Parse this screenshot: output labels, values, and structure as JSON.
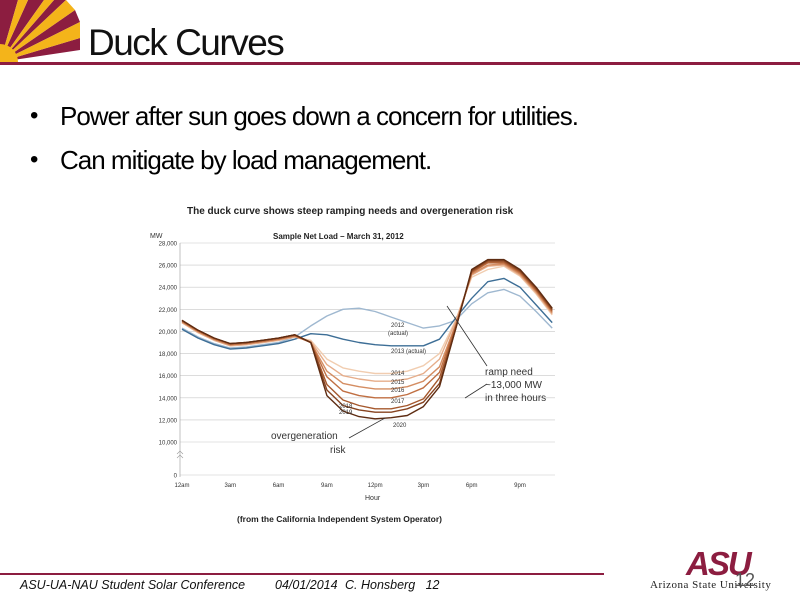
{
  "slide": {
    "title": "Duck Curves",
    "bullets": [
      "Power after sun goes down a concern for utilities.",
      "Can mitigate by load management."
    ],
    "page_number": "12"
  },
  "footer": {
    "conference": "ASU-UA-NAU Student Solar Conference",
    "date": "04/01/2014",
    "author_page": "C. Honsberg   12"
  },
  "logo": {
    "mark": "ASU",
    "name": "Arizona State University"
  },
  "colors": {
    "maroon": "#8c1d40",
    "gold": "#f4b41a"
  },
  "chart_data": {
    "type": "line",
    "title": "The duck curve shows steep ramping needs and overgeneration risk",
    "subtitle": "Sample Net Load – March 31, 2012",
    "ylabel": "MW",
    "xlabel": "Hour",
    "source": "(from the California Independent System Operator)",
    "ylim": [
      0,
      28000
    ],
    "yticks": [
      "0",
      "10,000",
      "12,000",
      "14,000",
      "16,000",
      "18,000",
      "20,000",
      "22,000",
      "24,000",
      "26,000",
      "28,000"
    ],
    "xticks": [
      "12am",
      "3am",
      "6am",
      "9am",
      "12pm",
      "3pm",
      "6pm",
      "9pm"
    ],
    "x": [
      0,
      1,
      2,
      3,
      4,
      5,
      6,
      7,
      8,
      9,
      10,
      11,
      12,
      13,
      14,
      15,
      16,
      17,
      18,
      19,
      20,
      21,
      22,
      23
    ],
    "series": [
      {
        "name": "2012 (actual)",
        "color": "#9fb8d0",
        "values": [
          20300,
          19500,
          18900,
          18500,
          18600,
          18800,
          19000,
          19500,
          20500,
          21400,
          22000,
          22100,
          21800,
          21300,
          20800,
          20300,
          20500,
          21000,
          22500,
          23500,
          23800,
          23200,
          21800,
          20300
        ]
      },
      {
        "name": "2013 (actual)",
        "color": "#3d6e96",
        "values": [
          20200,
          19400,
          18800,
          18400,
          18500,
          18700,
          18900,
          19300,
          19800,
          19700,
          19300,
          19000,
          18800,
          18700,
          18700,
          18700,
          19300,
          21200,
          23000,
          24500,
          24800,
          24000,
          22400,
          20800
        ]
      },
      {
        "name": "2014",
        "color": "#f1cdb0",
        "values": [
          20800,
          19900,
          19200,
          18700,
          18800,
          19000,
          19200,
          19500,
          19200,
          17500,
          16700,
          16400,
          16200,
          16200,
          16400,
          16900,
          18000,
          21000,
          24900,
          25600,
          25900,
          25000,
          23400,
          21500
        ]
      },
      {
        "name": "2015",
        "color": "#e6ad8a",
        "values": [
          20800,
          19900,
          19200,
          18700,
          18800,
          19000,
          19200,
          19500,
          19100,
          17000,
          16000,
          15700,
          15500,
          15500,
          15700,
          16200,
          17500,
          20900,
          25100,
          25900,
          26000,
          25100,
          23500,
          21600
        ]
      },
      {
        "name": "2016",
        "color": "#d48d62",
        "values": [
          20900,
          20000,
          19300,
          18800,
          18900,
          19100,
          19300,
          19600,
          19000,
          16400,
          15300,
          15000,
          14800,
          14800,
          15000,
          15500,
          16800,
          20600,
          25200,
          26000,
          26100,
          25200,
          23600,
          21700
        ]
      },
      {
        "name": "2017",
        "color": "#c06f42",
        "values": [
          20900,
          20000,
          19300,
          18800,
          18900,
          19100,
          19300,
          19600,
          19000,
          15900,
          14600,
          14200,
          14000,
          14000,
          14300,
          14900,
          16300,
          20500,
          25300,
          26200,
          26200,
          25300,
          23700,
          21800
        ]
      },
      {
        "name": "2018",
        "color": "#a5582d",
        "values": [
          21000,
          20100,
          19400,
          18900,
          19000,
          19200,
          19400,
          19700,
          19000,
          15200,
          13800,
          13300,
          13000,
          13000,
          13300,
          13900,
          15800,
          20300,
          25400,
          26300,
          26300,
          25400,
          23800,
          21900
        ]
      },
      {
        "name": "2019",
        "color": "#87431f",
        "values": [
          21000,
          20100,
          19400,
          18900,
          19000,
          19200,
          19400,
          19700,
          19000,
          14700,
          13300,
          12900,
          12700,
          12700,
          13000,
          13600,
          15300,
          20200,
          25500,
          26400,
          26400,
          25500,
          23900,
          22000
        ]
      },
      {
        "name": "2020",
        "color": "#5e2c12",
        "values": [
          21000,
          20100,
          19400,
          18900,
          19000,
          19200,
          19400,
          19700,
          19000,
          14200,
          12800,
          12300,
          12100,
          12200,
          12400,
          13200,
          15000,
          20200,
          25600,
          26500,
          26500,
          25600,
          24000,
          22100
        ]
      }
    ],
    "annotations": [
      {
        "text": "ramp need ~13,000 MW in three hours"
      },
      {
        "text": "overgeneration risk"
      }
    ]
  }
}
